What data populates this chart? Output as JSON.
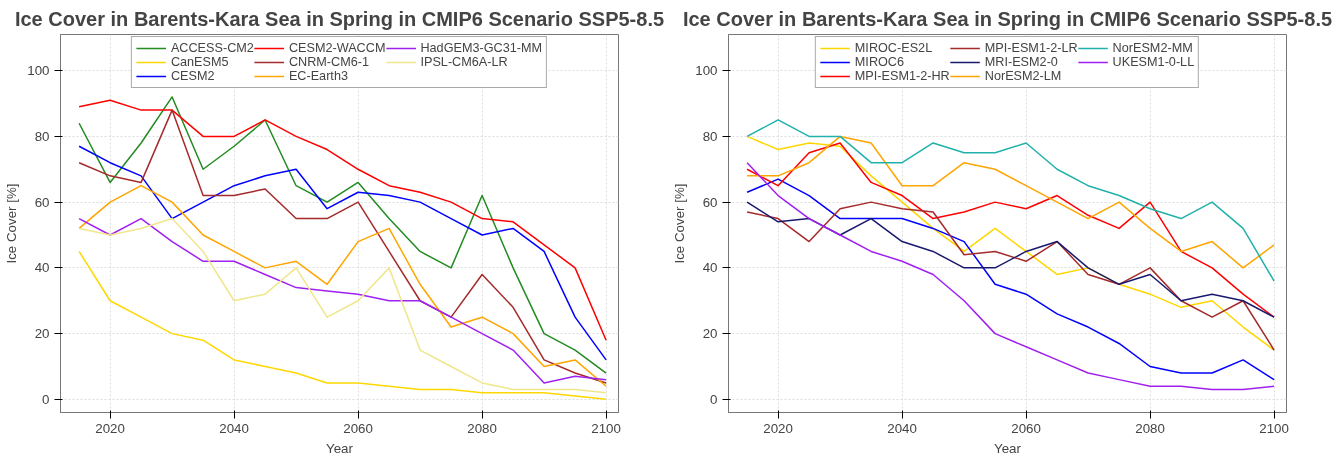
{
  "chart_data": [
    {
      "type": "line",
      "title": "Ice Cover in Barents-Kara Sea in Spring in CMIP6 Scenario SSP5-8.5",
      "xlabel": "Year",
      "ylabel": "Ice Cover [%]",
      "x": [
        2015,
        2020,
        2025,
        2030,
        2035,
        2040,
        2045,
        2050,
        2055,
        2060,
        2065,
        2070,
        2075,
        2080,
        2085,
        2090,
        2095,
        2100
      ],
      "xlim": [
        2012,
        2102
      ],
      "ylim": [
        -4,
        111
      ],
      "xticks": [
        2020,
        2040,
        2060,
        2080,
        2100
      ],
      "yticks": [
        0,
        20,
        40,
        60,
        80,
        100
      ],
      "grid": true,
      "legend": "top",
      "line_style": "solid",
      "marker": "none",
      "series": [
        {
          "name": "ACCESS-CM2",
          "color": "#228b22",
          "values": [
            84,
            66,
            78,
            92,
            70,
            77,
            85,
            65,
            60,
            66,
            55,
            45,
            40,
            62,
            40,
            20,
            15,
            8
          ]
        },
        {
          "name": "CanESM5",
          "color": "#ffd700",
          "values": [
            45,
            30,
            25,
            20,
            18,
            12,
            10,
            8,
            5,
            5,
            4,
            3,
            3,
            2,
            2,
            2,
            1,
            0
          ]
        },
        {
          "name": "CESM2",
          "color": "#0000ff",
          "values": [
            77,
            72,
            68,
            55,
            60,
            65,
            68,
            70,
            58,
            63,
            62,
            60,
            55,
            50,
            52,
            45,
            25,
            12
          ]
        },
        {
          "name": "CESM2-WACCM",
          "color": "#ff0000",
          "values": [
            89,
            91,
            88,
            88,
            80,
            80,
            85,
            80,
            76,
            70,
            65,
            63,
            60,
            55,
            54,
            47,
            40,
            18
          ]
        },
        {
          "name": "CNRM-CM6-1",
          "color": "#a52a2a",
          "values": [
            72,
            68,
            66,
            88,
            62,
            62,
            64,
            55,
            55,
            60,
            45,
            30,
            25,
            38,
            28,
            12,
            8,
            5
          ]
        },
        {
          "name": "EC-Earth3",
          "color": "#ffa500",
          "values": [
            52,
            60,
            65,
            60,
            50,
            45,
            40,
            42,
            35,
            48,
            52,
            35,
            22,
            25,
            20,
            10,
            12,
            4
          ]
        },
        {
          "name": "HadGEM3-GC31-MM",
          "color": "#a020f0",
          "values": [
            55,
            50,
            55,
            48,
            42,
            42,
            38,
            34,
            33,
            32,
            30,
            30,
            25,
            20,
            15,
            5,
            7,
            6
          ]
        },
        {
          "name": "IPSL-CM6A-LR",
          "color": "#f0e68c",
          "values": [
            52,
            50,
            52,
            55,
            45,
            30,
            32,
            40,
            25,
            30,
            40,
            15,
            10,
            5,
            3,
            3,
            3,
            2
          ]
        }
      ]
    },
    {
      "type": "line",
      "title": "Ice Cover in Barents-Kara Sea in Spring in CMIP6 Scenario SSP5-8.5",
      "xlabel": "Year",
      "ylabel": "Ice Cover [%]",
      "x": [
        2015,
        2020,
        2025,
        2030,
        2035,
        2040,
        2045,
        2050,
        2055,
        2060,
        2065,
        2070,
        2075,
        2080,
        2085,
        2090,
        2095,
        2100
      ],
      "xlim": [
        2012,
        2102
      ],
      "ylim": [
        -4,
        111
      ],
      "xticks": [
        2020,
        2040,
        2060,
        2080,
        2100
      ],
      "yticks": [
        0,
        20,
        40,
        60,
        80,
        100
      ],
      "grid": true,
      "legend": "top",
      "line_style": "solid",
      "marker": "none",
      "series": [
        {
          "name": "MIROC-ES2L",
          "color": "#ffd700",
          "values": [
            80,
            76,
            78,
            77,
            68,
            60,
            52,
            45,
            52,
            45,
            38,
            40,
            35,
            32,
            28,
            30,
            22,
            15
          ]
        },
        {
          "name": "MIROC6",
          "color": "#0000ff",
          "values": [
            63,
            67,
            62,
            55,
            55,
            55,
            52,
            48,
            35,
            32,
            26,
            22,
            17,
            10,
            8,
            8,
            12,
            6
          ]
        },
        {
          "name": "MPI-ESM1-2-HR",
          "color": "#ff0000",
          "values": [
            70,
            65,
            75,
            78,
            66,
            62,
            55,
            57,
            60,
            58,
            62,
            56,
            52,
            60,
            45,
            40,
            32,
            25
          ]
        },
        {
          "name": "MPI-ESM1-2-LR",
          "color": "#a52a2a",
          "values": [
            57,
            55,
            48,
            58,
            60,
            58,
            57,
            44,
            45,
            42,
            48,
            38,
            35,
            40,
            30,
            25,
            30,
            15
          ]
        },
        {
          "name": "MRI-ESM2-0",
          "color": "#191970",
          "values": [
            60,
            54,
            55,
            50,
            55,
            48,
            45,
            40,
            40,
            45,
            48,
            40,
            35,
            38,
            30,
            32,
            30,
            25
          ]
        },
        {
          "name": "NorESM2-LM",
          "color": "#ffa500",
          "values": [
            68,
            68,
            72,
            80,
            78,
            65,
            65,
            72,
            70,
            65,
            60,
            55,
            60,
            52,
            45,
            48,
            40,
            47
          ]
        },
        {
          "name": "NorESM2-MM",
          "color": "#20b2aa",
          "values": [
            80,
            85,
            80,
            80,
            72,
            72,
            78,
            75,
            75,
            78,
            70,
            65,
            62,
            58,
            55,
            60,
            52,
            36
          ]
        },
        {
          "name": "UKESM1-0-LL",
          "color": "#a020f0",
          "values": [
            72,
            62,
            55,
            50,
            45,
            42,
            38,
            30,
            20,
            16,
            12,
            8,
            6,
            4,
            4,
            3,
            3,
            4
          ]
        }
      ]
    }
  ]
}
